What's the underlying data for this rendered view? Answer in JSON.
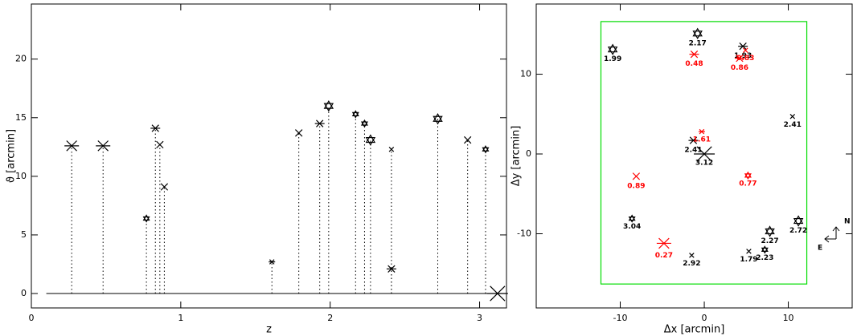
{
  "chart_data": [
    {
      "type": "scatter",
      "xlabel": "z",
      "ylabel": "ϑ [arcmin]",
      "xlim": [
        0,
        3.18
      ],
      "ylim": [
        -1.23,
        24.7
      ],
      "xticks": [
        0,
        1,
        2,
        3
      ],
      "yticks": [
        0,
        5,
        10,
        15,
        20
      ],
      "x": [
        0.27,
        0.48,
        0.77,
        0.83,
        0.86,
        0.89,
        1.61,
        1.79,
        1.93,
        1.99,
        2.17,
        2.23,
        2.27,
        2.41,
        2.41,
        2.72,
        2.92,
        3.04
      ],
      "values": [
        12.6,
        12.6,
        6.4,
        14.1,
        12.7,
        9.1,
        2.7,
        13.7,
        14.5,
        16.0,
        15.3,
        14.5,
        13.1,
        12.3,
        2.1,
        14.9,
        13.1,
        12.3
      ],
      "markers": [
        "asterisk",
        "asterisk",
        "star",
        "asterisk",
        "x",
        "x",
        "asterisk",
        "x",
        "asterisk",
        "star",
        "star",
        "star",
        "star",
        "x",
        "asterisk",
        "star",
        "x",
        "star"
      ],
      "sizes": [
        "large",
        "large",
        "small",
        "medium",
        "medium",
        "medium",
        "small",
        "medium",
        "medium",
        "medium",
        "small",
        "small",
        "medium",
        "small",
        "medium",
        "medium",
        "medium",
        "small"
      ],
      "color": "#000000",
      "cluster": {
        "x": 3.12,
        "y": 0,
        "marker": "asterisk"
      },
      "baseline": {
        "x": [
          0.1,
          3.12
        ],
        "y": 0
      }
    },
    {
      "type": "scatter",
      "xlabel": "Δx [arcmin]",
      "ylabel": "Δy [arcmin]",
      "xlim": [
        -20,
        17.6
      ],
      "ylim": [
        -19.3,
        18.8
      ],
      "xticks": [
        -10,
        0,
        10
      ],
      "yticks": [
        -10,
        0,
        10
      ],
      "x": [
        -10.9,
        -0.8,
        4.6,
        -1.2,
        4.2,
        4.9,
        10.5,
        -1.3,
        -0.3,
        -8.1,
        5.2,
        -8.6,
        11.2,
        7.8,
        7.2,
        5.3,
        -1.5,
        -4.8
      ],
      "values": [
        13.1,
        15.1,
        13.5,
        12.5,
        12.0,
        13.0,
        4.7,
        1.7,
        2.8,
        -2.8,
        -2.7,
        -8.1,
        -8.4,
        -9.7,
        -12.0,
        -12.2,
        -12.7,
        -11.2
      ],
      "labels": [
        "1.99",
        "2.17",
        "1.93",
        "0.48",
        "0.86",
        "0.83",
        "2.41",
        "2.41",
        "1.61",
        "0.89",
        "0.77",
        "3.04",
        "2.72",
        "2.27",
        "2.23",
        "1.79",
        "2.92",
        "0.27"
      ],
      "markers": [
        "star",
        "star",
        "asterisk",
        "asterisk",
        "asterisk",
        "x",
        "x",
        "asterisk",
        "asterisk",
        "x",
        "star",
        "star",
        "star",
        "star",
        "star",
        "x",
        "x",
        "asterisk"
      ],
      "sizes": [
        "medium",
        "medium",
        "medium",
        "medium",
        "medium",
        "small",
        "small",
        "medium",
        "small",
        "medium",
        "small",
        "small",
        "medium",
        "medium",
        "small",
        "small",
        "small",
        "large"
      ],
      "colors": [
        "#000000",
        "#000000",
        "#000000",
        "#ff0000",
        "#ff0000",
        "#ff0000",
        "#000000",
        "#000000",
        "#ff0000",
        "#ff0000",
        "#ff0000",
        "#000000",
        "#000000",
        "#000000",
        "#000000",
        "#000000",
        "#000000",
        "#ff0000"
      ],
      "cluster": {
        "x": 0,
        "y": 0,
        "marker": "asterisk",
        "label": "3.12"
      },
      "field": {
        "color": "#00dd00",
        "x": [
          -12.3,
          12.2
        ],
        "y": [
          -16.3,
          16.6
        ]
      },
      "compass": {
        "north": "N",
        "east": "E"
      }
    }
  ]
}
